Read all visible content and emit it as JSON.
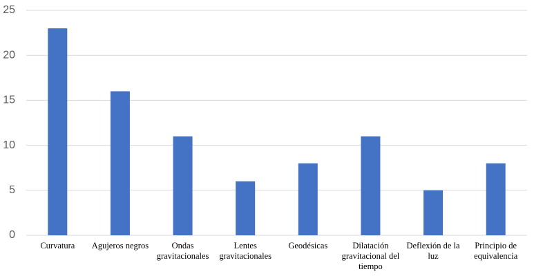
{
  "chart_data": {
    "type": "bar",
    "categories": [
      "Curvatura",
      "Agujeros negros",
      "Ondas gravitacionales",
      "Lentes gravitacionales",
      "Geodésicas",
      "Dilatación gravitacional del tiempo",
      "Deflexión de la luz",
      "Principio de equivalencia"
    ],
    "values": [
      23,
      16,
      11,
      6,
      8,
      11,
      5,
      8
    ],
    "color": "#4472c4",
    "ylim": [
      0,
      25
    ],
    "yticks": [
      0,
      5,
      10,
      15,
      20,
      25
    ],
    "grid": true
  }
}
